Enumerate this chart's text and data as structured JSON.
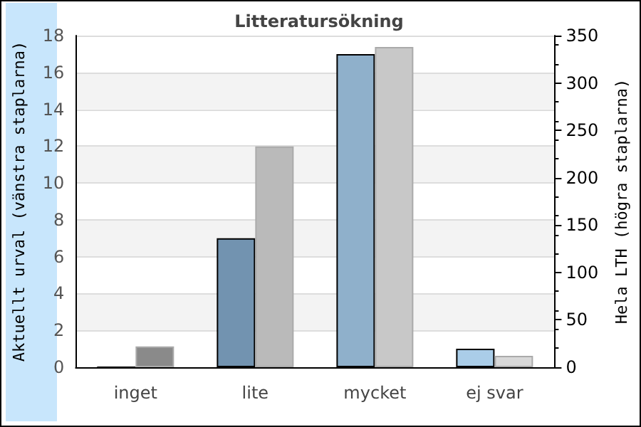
{
  "chart_data": {
    "type": "bar",
    "title": "Litteratursökning",
    "ylabel": "Aktuellt urval (vänstra staplarna)",
    "y2label": "Hela LTH (högra staplarna)",
    "categories": [
      "inget",
      "lite",
      "mycket",
      "ej svar"
    ],
    "series": [
      {
        "colors": [
          "#5a7a9a",
          "#7293b0",
          "#8fb0cb",
          "#aacde8"
        ],
        "values": [
          0,
          7,
          17,
          1
        ]
      },
      {
        "colors": [
          "#8a8a8a",
          "#bababa",
          "#c8c8c8",
          "#d8d8d8"
        ],
        "values": [
          22,
          233,
          338,
          12
        ],
        "axis": "y2"
      }
    ],
    "ylim": [
      0,
      18
    ],
    "yticks": [
      0,
      2,
      4,
      6,
      8,
      10,
      12,
      14,
      16,
      18
    ],
    "y2lim": [
      0,
      350
    ],
    "y2ticks": [
      0,
      50,
      100,
      150,
      200,
      250,
      300,
      350
    ],
    "grid": "y"
  }
}
